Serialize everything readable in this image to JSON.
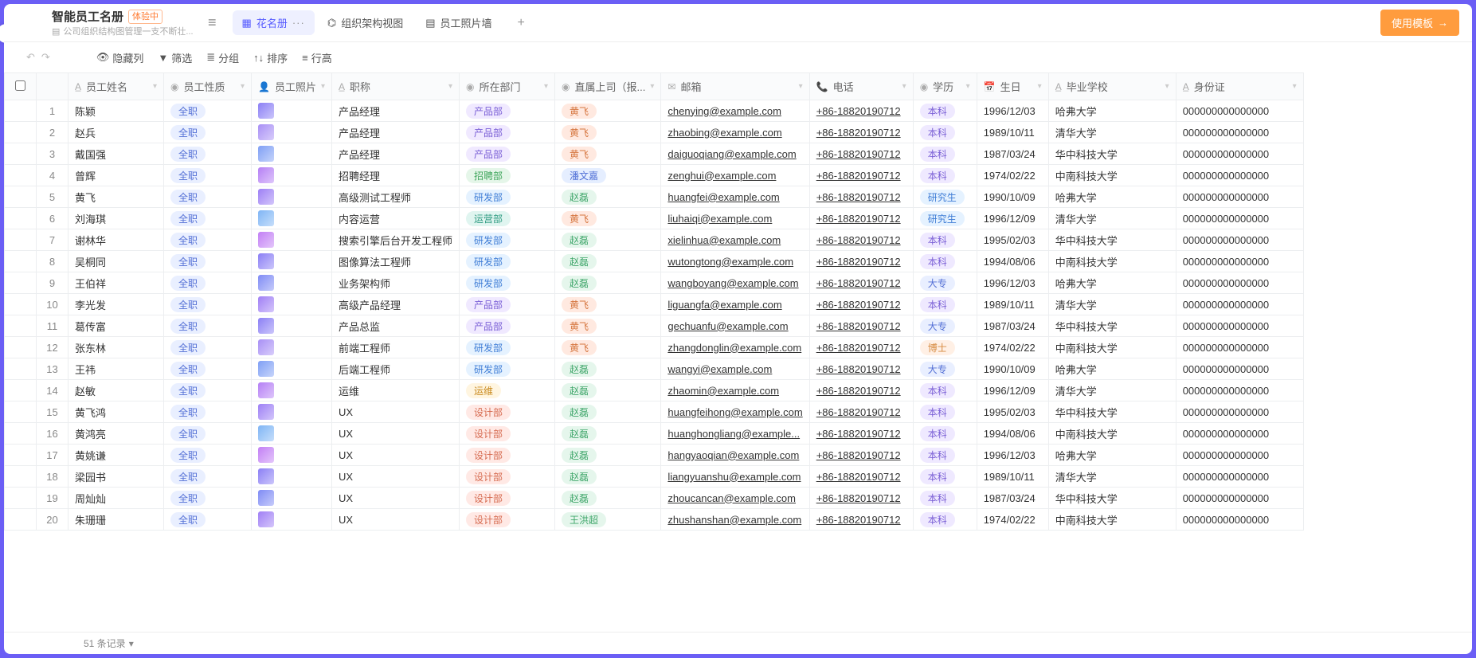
{
  "edgeHandle": "›",
  "header": {
    "title": "智能员工名册",
    "trialBadge": "体验中",
    "subtitle": "公司组织结构图管理一支不断壮...",
    "views": [
      {
        "icon": "▦",
        "label": "花名册",
        "active": true,
        "dots": "···"
      },
      {
        "icon": "⌬",
        "label": "组织架构视图",
        "active": false
      },
      {
        "icon": "▤",
        "label": "员工照片墙",
        "active": false
      }
    ],
    "useTemplate": "使用模板"
  },
  "toolbar": {
    "back": "↶",
    "forward": "↷",
    "hideCols": "隐藏列",
    "filter": "筛选",
    "group": "分组",
    "sort": "排序",
    "rowHeight": "行高"
  },
  "columns": [
    {
      "icon": "",
      "label": "",
      "cls": "col-check"
    },
    {
      "icon": "",
      "label": "",
      "cls": "col-num"
    },
    {
      "icon": "A̲",
      "label": "员工姓名",
      "cls": "c-name"
    },
    {
      "icon": "◉",
      "label": "员工性质",
      "cls": "c-type"
    },
    {
      "icon": "👤",
      "label": "员工照片",
      "cls": "c-photo"
    },
    {
      "icon": "A̲",
      "label": "职称",
      "cls": "c-title"
    },
    {
      "icon": "◉",
      "label": "所在部门",
      "cls": "c-dept"
    },
    {
      "icon": "◉",
      "label": "直属上司（报...",
      "cls": "c-boss"
    },
    {
      "icon": "✉",
      "label": "邮箱",
      "cls": "c-email"
    },
    {
      "icon": "📞",
      "label": "电话",
      "cls": "c-phone"
    },
    {
      "icon": "◉",
      "label": "学历",
      "cls": "c-edu"
    },
    {
      "icon": "📅",
      "label": "生日",
      "cls": "c-bday"
    },
    {
      "icon": "A̲",
      "label": "毕业学校",
      "cls": "c-school"
    },
    {
      "icon": "A̲",
      "label": "身份证",
      "cls": "c-id"
    }
  ],
  "deptClass": {
    "产品部": "tag-dept-product",
    "招聘部": "tag-dept-recruit",
    "研发部": "tag-dept-rd",
    "运营部": "tag-dept-yunying",
    "运维": "tag-dept-ops",
    "设计部": "tag-dept-design"
  },
  "bossClass": {
    "黄飞": "tag-boss-hf",
    "潘文嘉": "tag-boss-pwj",
    "赵磊": "tag-boss-zl",
    "王洪超": "tag-boss-whc"
  },
  "eduClass": {
    "本科": "tag-edu-bk",
    "研究生": "tag-edu-yjs",
    "大专": "tag-edu-dz",
    "博士": "tag-edu-bs"
  },
  "avatarColors": [
    "#8b7ff5",
    "#a88ff5",
    "#7f9ff5",
    "#b57ff5",
    "#9d7ff5",
    "#7fb5f5",
    "#c27ff5",
    "#8b7ff5",
    "#7f8bf5",
    "#a07ff5"
  ],
  "rows": [
    {
      "n": 1,
      "name": "陈颖",
      "type": "全职",
      "title": "产品经理",
      "dept": "产品部",
      "boss": "黄飞",
      "email": "chenying@example.com",
      "phone": "+86-18820190712",
      "edu": "本科",
      "bday": "1996/12/03",
      "school": "哈弗大学",
      "id": "000000000000000"
    },
    {
      "n": 2,
      "name": "赵兵",
      "type": "全职",
      "title": "产品经理",
      "dept": "产品部",
      "boss": "黄飞",
      "email": "zhaobing@example.com",
      "phone": "+86-18820190712",
      "edu": "本科",
      "bday": "1989/10/11",
      "school": "清华大学",
      "id": "000000000000000"
    },
    {
      "n": 3,
      "name": "戴国强",
      "type": "全职",
      "title": "产品经理",
      "dept": "产品部",
      "boss": "黄飞",
      "email": "daiguoqiang@example.com",
      "phone": "+86-18820190712",
      "edu": "本科",
      "bday": "1987/03/24",
      "school": "华中科技大学",
      "id": "000000000000000"
    },
    {
      "n": 4,
      "name": "曾辉",
      "type": "全职",
      "title": "招聘经理",
      "dept": "招聘部",
      "boss": "潘文嘉",
      "email": "zenghui@example.com",
      "phone": "+86-18820190712",
      "edu": "本科",
      "bday": "1974/02/22",
      "school": "中南科技大学",
      "id": "000000000000000"
    },
    {
      "n": 5,
      "name": "黄飞",
      "type": "全职",
      "title": "高级测试工程师",
      "dept": "研发部",
      "boss": "赵磊",
      "email": "huangfei@example.com",
      "phone": "+86-18820190712",
      "edu": "研究生",
      "bday": "1990/10/09",
      "school": "哈弗大学",
      "id": "000000000000000"
    },
    {
      "n": 6,
      "name": "刘海琪",
      "type": "全职",
      "title": "内容运营",
      "dept": "运营部",
      "boss": "黄飞",
      "email": "liuhaiqi@example.com",
      "phone": "+86-18820190712",
      "edu": "研究生",
      "bday": "1996/12/09",
      "school": "清华大学",
      "id": "000000000000000"
    },
    {
      "n": 7,
      "name": "谢林华",
      "type": "全职",
      "title": "搜索引擎后台开发工程师",
      "dept": "研发部",
      "boss": "赵磊",
      "email": "xielinhua@example.com",
      "phone": "+86-18820190712",
      "edu": "本科",
      "bday": "1995/02/03",
      "school": "华中科技大学",
      "id": "000000000000000"
    },
    {
      "n": 8,
      "name": "吴桐同",
      "type": "全职",
      "title": "图像算法工程师",
      "dept": "研发部",
      "boss": "赵磊",
      "email": "wutongtong@example.com",
      "phone": "+86-18820190712",
      "edu": "本科",
      "bday": "1994/08/06",
      "school": "中南科技大学",
      "id": "000000000000000"
    },
    {
      "n": 9,
      "name": "王伯祥",
      "type": "全职",
      "title": "业务架构师",
      "dept": "研发部",
      "boss": "赵磊",
      "email": "wangboyang@example.com",
      "phone": "+86-18820190712",
      "edu": "大专",
      "bday": "1996/12/03",
      "school": "哈弗大学",
      "id": "000000000000000"
    },
    {
      "n": 10,
      "name": "李光发",
      "type": "全职",
      "title": "高级产品经理",
      "dept": "产品部",
      "boss": "黄飞",
      "email": "liguangfa@example.com",
      "phone": "+86-18820190712",
      "edu": "本科",
      "bday": "1989/10/11",
      "school": "清华大学",
      "id": "000000000000000"
    },
    {
      "n": 11,
      "name": "葛传富",
      "type": "全职",
      "title": "产品总监",
      "dept": "产品部",
      "boss": "黄飞",
      "email": "gechuanfu@example.com",
      "phone": "+86-18820190712",
      "edu": "大专",
      "bday": "1987/03/24",
      "school": "华中科技大学",
      "id": "000000000000000"
    },
    {
      "n": 12,
      "name": "张东林",
      "type": "全职",
      "title": "前端工程师",
      "dept": "研发部",
      "boss": "黄飞",
      "email": "zhangdonglin@example.com",
      "phone": "+86-18820190712",
      "edu": "博士",
      "bday": "1974/02/22",
      "school": "中南科技大学",
      "id": "000000000000000"
    },
    {
      "n": 13,
      "name": "王祎",
      "type": "全职",
      "title": "后端工程师",
      "dept": "研发部",
      "boss": "赵磊",
      "email": "wangyi@example.com",
      "phone": "+86-18820190712",
      "edu": "大专",
      "bday": "1990/10/09",
      "school": "哈弗大学",
      "id": "000000000000000"
    },
    {
      "n": 14,
      "name": "赵敏",
      "type": "全职",
      "title": "运维",
      "dept": "运维",
      "boss": "赵磊",
      "email": "zhaomin@example.com",
      "phone": "+86-18820190712",
      "edu": "本科",
      "bday": "1996/12/09",
      "school": "清华大学",
      "id": "000000000000000"
    },
    {
      "n": 15,
      "name": "黄飞鸿",
      "type": "全职",
      "title": "UX",
      "dept": "设计部",
      "boss": "赵磊",
      "email": "huangfeihong@example.com",
      "phone": "+86-18820190712",
      "edu": "本科",
      "bday": "1995/02/03",
      "school": "华中科技大学",
      "id": "000000000000000"
    },
    {
      "n": 16,
      "name": "黄鸿亮",
      "type": "全职",
      "title": "UX",
      "dept": "设计部",
      "boss": "赵磊",
      "email": "huanghongliang@example...",
      "phone": "+86-18820190712",
      "edu": "本科",
      "bday": "1994/08/06",
      "school": "中南科技大学",
      "id": "000000000000000"
    },
    {
      "n": 17,
      "name": "黄姚谦",
      "type": "全职",
      "title": "UX",
      "dept": "设计部",
      "boss": "赵磊",
      "email": "hangyaoqian@example.com",
      "phone": "+86-18820190712",
      "edu": "本科",
      "bday": "1996/12/03",
      "school": "哈弗大学",
      "id": "000000000000000"
    },
    {
      "n": 18,
      "name": "梁园书",
      "type": "全职",
      "title": "UX",
      "dept": "设计部",
      "boss": "赵磊",
      "email": "liangyuanshu@example.com",
      "phone": "+86-18820190712",
      "edu": "本科",
      "bday": "1989/10/11",
      "school": "清华大学",
      "id": "000000000000000"
    },
    {
      "n": 19,
      "name": "周灿灿",
      "type": "全职",
      "title": "UX",
      "dept": "设计部",
      "boss": "赵磊",
      "email": "zhoucancan@example.com",
      "phone": "+86-18820190712",
      "edu": "本科",
      "bday": "1987/03/24",
      "school": "华中科技大学",
      "id": "000000000000000"
    },
    {
      "n": 20,
      "name": "朱珊珊",
      "type": "全职",
      "title": "UX",
      "dept": "设计部",
      "boss": "王洪超",
      "email": "zhushanshan@example.com",
      "phone": "+86-18820190712",
      "edu": "本科",
      "bday": "1974/02/22",
      "school": "中南科技大学",
      "id": "000000000000000"
    }
  ],
  "footer": {
    "count": "51 条记录",
    "caret": "▾"
  }
}
